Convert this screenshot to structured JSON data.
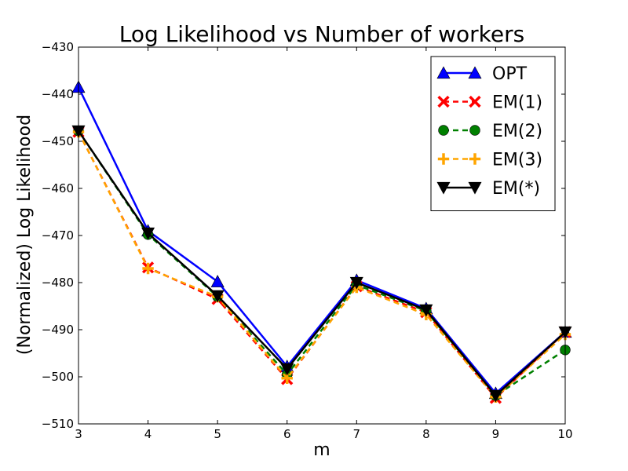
{
  "chart_data": {
    "type": "line",
    "title": "Log Likelihood vs Number of workers",
    "xlabel": "m",
    "ylabel": "(Normalized) Log Likelihood",
    "xlim": [
      3,
      10
    ],
    "ylim": [
      -510,
      -430
    ],
    "xticks": [
      3,
      4,
      5,
      6,
      7,
      8,
      9,
      10
    ],
    "yticks": [
      -510,
      -500,
      -490,
      -480,
      -470,
      -460,
      -450,
      -440,
      -430
    ],
    "legend_position": "top-right",
    "grid": false,
    "x": [
      3,
      4,
      5,
      6,
      7,
      8,
      9,
      10
    ],
    "series": [
      {
        "name": "OPT",
        "color": "#0000ff",
        "marker": "triangle-up",
        "dash": "solid",
        "values": [
          -438.5,
          -469.0,
          -479.8,
          -497.8,
          -479.5,
          -485.5,
          -503.5,
          -490.5
        ]
      },
      {
        "name": "EM(1)",
        "color": "#ff0000",
        "marker": "x",
        "dash": "dashed",
        "values": [
          -448.0,
          -476.8,
          -483.5,
          -500.5,
          -480.8,
          -486.3,
          -504.5,
          -490.5
        ]
      },
      {
        "name": "EM(2)",
        "color": "#008000",
        "marker": "circle",
        "dash": "dashed",
        "values": [
          -447.8,
          -469.8,
          -483.0,
          -499.5,
          -480.5,
          -486.0,
          -504.0,
          -494.3
        ]
      },
      {
        "name": "EM(3)",
        "color": "#ffa500",
        "marker": "plus",
        "dash": "dashed",
        "values": [
          -448.0,
          -477.0,
          -483.0,
          -500.3,
          -481.0,
          -486.8,
          -504.3,
          -491.0
        ]
      },
      {
        "name": "EM(*)",
        "color": "#000000",
        "marker": "triangle-down",
        "dash": "solid",
        "values": [
          -447.8,
          -469.5,
          -482.8,
          -498.3,
          -480.0,
          -485.8,
          -504.0,
          -490.5
        ]
      }
    ]
  }
}
